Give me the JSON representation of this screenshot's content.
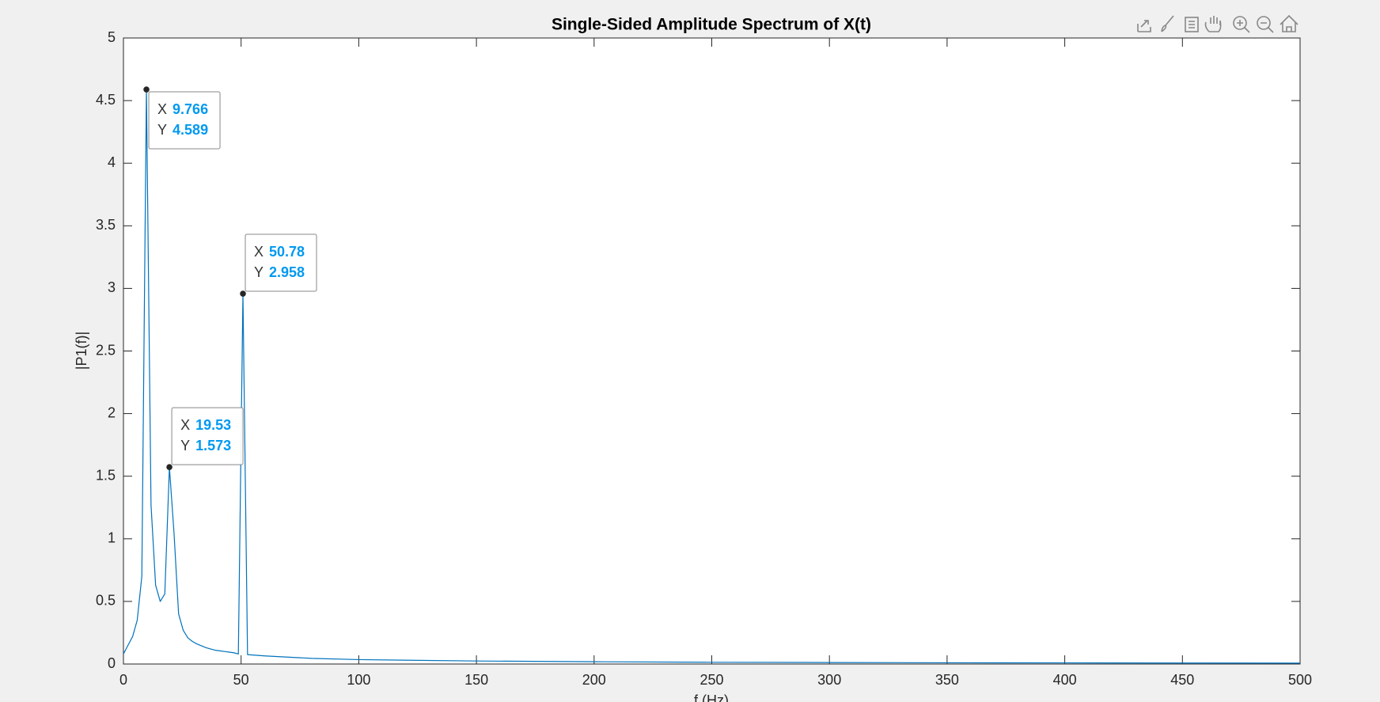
{
  "chart_data": {
    "type": "line",
    "title": "Single-Sided Amplitude Spectrum of X(t)",
    "xlabel": "f (Hz)",
    "ylabel": "|P1(f)|",
    "x": [
      0,
      1.953,
      3.906,
      5.859,
      7.813,
      9.766,
      11.72,
      13.67,
      15.63,
      17.58,
      19.53,
      21.48,
      23.44,
      25.39,
      27.34,
      29.3,
      31.25,
      33.2,
      35.16,
      37.11,
      39.06,
      41.02,
      42.97,
      44.92,
      46.88,
      48.83,
      50.78,
      52.73,
      60,
      80,
      100,
      150,
      200,
      250,
      300,
      350,
      400,
      450,
      500
    ],
    "series": [
      {
        "color": "#0072bd",
        "values": [
          0.08,
          0.15,
          0.22,
          0.35,
          0.7,
          4.589,
          1.27,
          0.63,
          0.5,
          0.56,
          1.573,
          1.05,
          0.4,
          0.27,
          0.21,
          0.18,
          0.16,
          0.145,
          0.13,
          0.12,
          0.11,
          0.105,
          0.1,
          0.095,
          0.09,
          0.08,
          2.958,
          0.075,
          0.065,
          0.045,
          0.035,
          0.024,
          0.018,
          0.014,
          0.012,
          0.01,
          0.009,
          0.008,
          0.007
        ]
      }
    ],
    "xlim": [
      0,
      500
    ],
    "xticks": [
      0,
      50,
      100,
      150,
      200,
      250,
      300,
      350,
      400,
      450,
      500
    ],
    "ylim": [
      0,
      5
    ],
    "yticks": [
      0,
      0.5,
      1,
      1.5,
      2,
      2.5,
      3,
      3.5,
      4,
      4.5,
      5
    ],
    "datatip_x_label": "X",
    "datatip_y_label": "Y",
    "datatips": [
      {
        "x": 9.766,
        "y": 4.589
      },
      {
        "x": 50.78,
        "y": 2.958
      },
      {
        "x": 19.53,
        "y": 1.573
      }
    ]
  }
}
